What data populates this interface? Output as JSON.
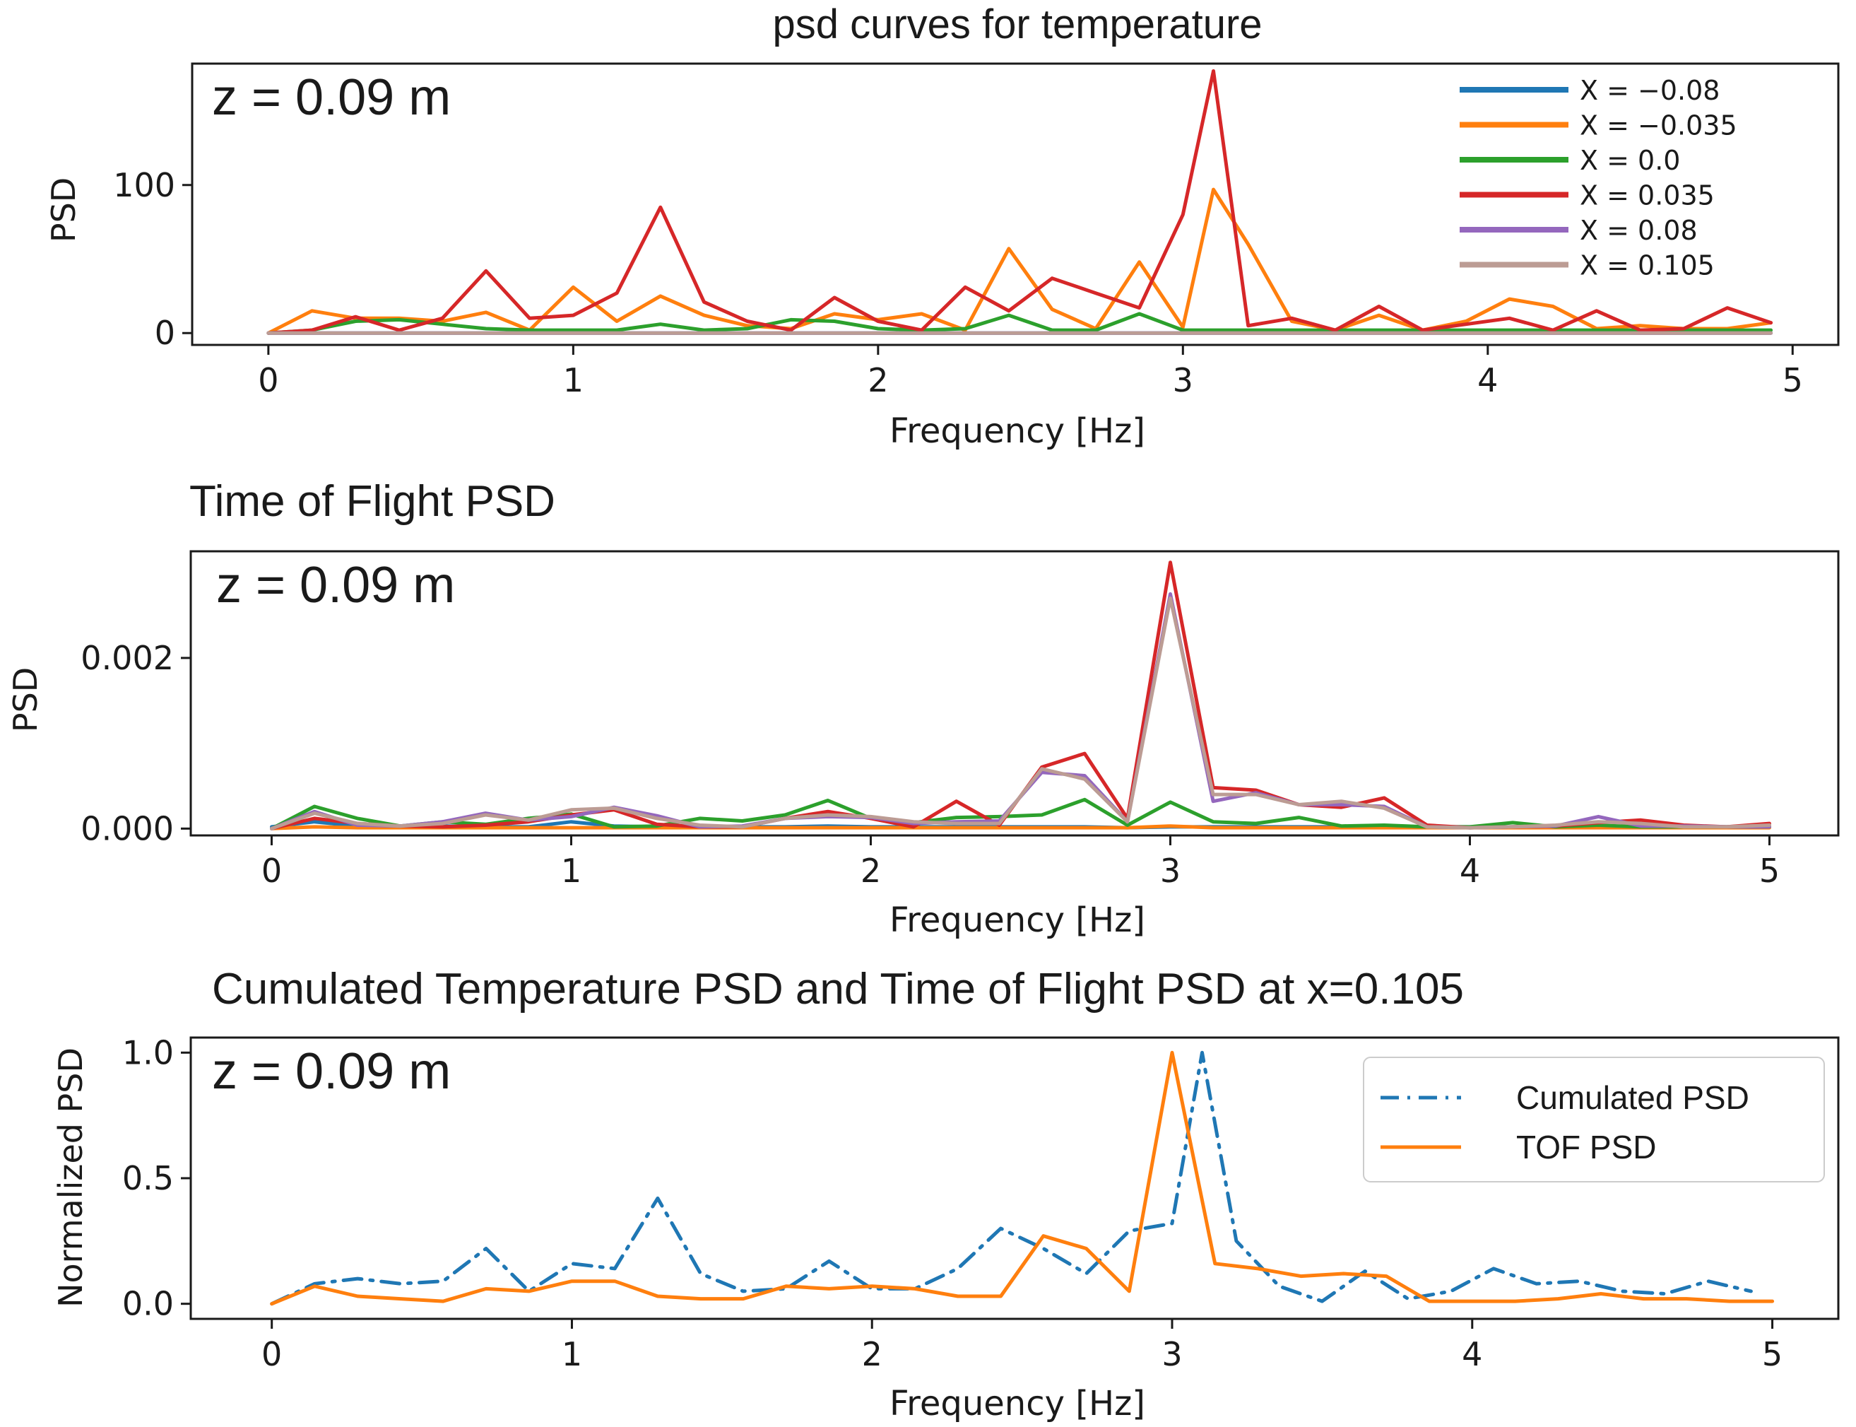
{
  "chart_data": [
    {
      "type": "line",
      "title": "psd curves for temperature",
      "annotation": "z = 0.09 m",
      "xlabel": "Frequency [Hz]",
      "ylabel": "PSD",
      "xlim": [
        -0.25,
        5.15
      ],
      "ylim": [
        -8,
        182
      ],
      "xticks": [
        0,
        1,
        2,
        3,
        4,
        5
      ],
      "yticks": [
        0,
        100
      ],
      "legend_position": "top-right",
      "x": [
        0,
        0.143,
        0.286,
        0.429,
        0.571,
        0.714,
        0.857,
        1.0,
        1.143,
        1.286,
        1.429,
        1.571,
        1.714,
        1.857,
        2.0,
        2.143,
        2.286,
        2.429,
        2.571,
        2.714,
        2.857,
        3.0,
        3.1,
        3.214,
        3.357,
        3.5,
        3.643,
        3.786,
        3.929,
        4.071,
        4.214,
        4.357,
        4.5,
        4.643,
        4.786,
        4.929
      ],
      "series": [
        {
          "name": "X = −0.08",
          "color": "#1f77b4",
          "values": [
            0,
            0,
            0,
            0,
            0,
            0,
            0,
            0,
            0,
            0,
            0,
            0,
            0,
            0,
            0,
            0,
            0,
            0,
            0,
            0,
            0,
            0,
            0,
            0,
            0,
            0,
            0,
            0,
            0,
            0,
            0,
            0,
            0,
            0,
            0,
            0
          ]
        },
        {
          "name": "X = −0.035",
          "color": "#ff7f0e",
          "values": [
            0,
            15,
            10,
            10,
            8,
            14,
            2,
            31,
            8,
            25,
            12,
            5,
            3,
            13,
            9,
            13,
            2,
            57,
            16,
            3,
            48,
            4,
            97,
            60,
            8,
            2,
            12,
            2,
            8,
            23,
            18,
            3,
            5,
            3,
            3,
            7
          ]
        },
        {
          "name": "X = 0.0",
          "color": "#2ca02c",
          "values": [
            0,
            2,
            8,
            9,
            6,
            3,
            2,
            2,
            2,
            6,
            2,
            3,
            9,
            8,
            3,
            2,
            3,
            12,
            2,
            2,
            13,
            2,
            2,
            2,
            2,
            2,
            2,
            2,
            2,
            2,
            2,
            2,
            2,
            2,
            2,
            2
          ]
        },
        {
          "name": "X = 0.035",
          "color": "#d62728",
          "values": [
            0,
            2,
            11,
            2,
            10,
            42,
            10,
            12,
            27,
            85,
            21,
            8,
            2,
            24,
            8,
            2,
            31,
            15,
            37,
            27,
            17,
            80,
            177,
            5,
            10,
            2,
            18,
            2,
            6,
            10,
            2,
            15,
            2,
            3,
            17,
            7
          ]
        },
        {
          "name": "X = 0.08",
          "color": "#9467bd",
          "values": [
            0,
            0,
            0,
            0,
            0,
            0,
            0,
            0,
            0,
            0,
            0,
            0,
            0,
            0,
            0,
            0,
            0,
            0,
            0,
            0,
            0,
            0,
            0,
            0,
            0,
            0,
            0,
            0,
            0,
            0,
            0,
            0,
            0,
            0,
            0,
            0
          ]
        },
        {
          "name": "X = 0.105",
          "color": "#bc9c94",
          "values": [
            0,
            0,
            0,
            0,
            0,
            0,
            0,
            0,
            0,
            0,
            0,
            0,
            0,
            0,
            0,
            0,
            0,
            0,
            0,
            0,
            0,
            0,
            0,
            0,
            0,
            0,
            0,
            0,
            0,
            0,
            0,
            0,
            0,
            0,
            0,
            0
          ]
        }
      ]
    },
    {
      "type": "line",
      "title": "Time of Flight PSD",
      "annotation": "z = 0.09 m",
      "xlabel": "Frequency [Hz]",
      "ylabel": "PSD",
      "xlim": [
        -0.27,
        5.23
      ],
      "ylim": [
        -8e-05,
        0.00325
      ],
      "xticks": [
        0,
        1,
        2,
        3,
        4,
        5
      ],
      "yticks": [
        0.0,
        0.002
      ],
      "ytick_labels": [
        "0.000",
        "0.002"
      ],
      "x": [
        0,
        0.143,
        0.286,
        0.429,
        0.571,
        0.714,
        0.857,
        1.0,
        1.143,
        1.286,
        1.429,
        1.571,
        1.714,
        1.857,
        2.0,
        2.143,
        2.286,
        2.429,
        2.571,
        2.714,
        2.857,
        3.0,
        3.143,
        3.286,
        3.429,
        3.571,
        3.714,
        3.857,
        4.0,
        4.143,
        4.286,
        4.429,
        4.571,
        4.714,
        4.857,
        5.0
      ],
      "series": [
        {
          "name": "X = −0.08",
          "color": "#1f77b4",
          "values": [
            2e-05,
            8e-05,
            3e-05,
            2e-05,
            3e-05,
            2e-05,
            2e-05,
            8e-05,
            3e-05,
            2e-05,
            2e-05,
            2e-05,
            2e-05,
            3e-05,
            2e-05,
            2e-05,
            2e-05,
            2e-05,
            2e-05,
            2e-05,
            1e-05,
            2e-05,
            2e-05,
            2e-05,
            2e-05,
            2e-05,
            2e-05,
            2e-05,
            2e-05,
            2e-05,
            2e-05,
            2e-05,
            2e-05,
            2e-05,
            2e-05,
            2e-05
          ]
        },
        {
          "name": "X = −0.035",
          "color": "#ff7f0e",
          "values": [
            0,
            2e-05,
            1e-05,
            1e-05,
            1e-05,
            1e-05,
            1e-05,
            1e-05,
            1e-05,
            1e-05,
            1e-05,
            1e-05,
            1e-05,
            1e-05,
            1e-05,
            1e-05,
            1e-05,
            1e-05,
            1e-05,
            1e-05,
            1e-05,
            3e-05,
            1e-05,
            1e-05,
            1e-05,
            1e-05,
            1e-05,
            1e-05,
            1e-05,
            1e-05,
            1e-05,
            1e-05,
            1e-05,
            1e-05,
            1e-05,
            1e-05
          ]
        },
        {
          "name": "X = 0.0",
          "color": "#2ca02c",
          "values": [
            0,
            0.00026,
            0.00012,
            3e-05,
            8e-05,
            5e-05,
            0.00012,
            0.00017,
            2e-05,
            3e-05,
            0.00012,
            9e-05,
            0.00016,
            0.00033,
            0.00012,
            7e-05,
            0.00013,
            0.00014,
            0.00016,
            0.00034,
            4e-05,
            0.00031,
            8e-05,
            6e-05,
            0.00013,
            3e-05,
            4e-05,
            2e-05,
            2e-05,
            7e-05,
            2e-05,
            4e-05,
            2e-05,
            2e-05,
            2e-05,
            2e-05
          ]
        },
        {
          "name": "X = 0.035",
          "color": "#d62728",
          "values": [
            0,
            0.00012,
            6e-05,
            3e-05,
            2e-05,
            4e-05,
            8e-05,
            0.00016,
            0.00022,
            5e-05,
            2e-05,
            2e-05,
            0.00012,
            0.0002,
            0.00012,
            2e-05,
            0.00032,
            4e-05,
            0.00072,
            0.00088,
            0.00012,
            0.00312,
            0.00048,
            0.00045,
            0.00028,
            0.00025,
            0.00036,
            4e-05,
            1e-05,
            2e-05,
            3e-05,
            7e-05,
            0.0001,
            4e-05,
            2e-05,
            6e-05
          ]
        },
        {
          "name": "X = 0.08",
          "color": "#9467bd",
          "values": [
            0,
            0.0002,
            4e-05,
            3e-05,
            8e-05,
            0.00018,
            0.0001,
            0.00014,
            0.00025,
            0.00015,
            2e-05,
            3e-05,
            0.00012,
            0.00014,
            0.00013,
            6e-05,
            8e-05,
            9e-05,
            0.00066,
            0.00062,
            8e-05,
            0.00275,
            0.00032,
            0.00042,
            0.00028,
            0.00028,
            0.00026,
            2e-05,
            1e-05,
            2e-05,
            3e-05,
            0.00014,
            3e-05,
            3e-05,
            2e-05,
            2e-05
          ]
        },
        {
          "name": "X = 0.105",
          "color": "#bc9c94",
          "values": [
            0,
            0.00018,
            6e-05,
            3e-05,
            6e-05,
            0.00016,
            0.0001,
            0.00022,
            0.00024,
            0.00012,
            4e-05,
            2e-05,
            0.00012,
            0.00016,
            0.00014,
            8e-05,
            6e-05,
            6e-05,
            0.0007,
            0.00058,
            8e-05,
            0.0027,
            0.0004,
            0.0004,
            0.00028,
            0.00032,
            0.00024,
            2e-05,
            1e-05,
            2e-05,
            4e-05,
            8e-05,
            6e-05,
            2e-05,
            2e-05,
            4e-05
          ]
        }
      ]
    },
    {
      "type": "line",
      "title": "Cumulated Temperature PSD and Time of Flight PSD at x=0.105",
      "annotation": "z = 0.09 m",
      "xlabel": "Frequency [Hz]",
      "ylabel": "Normalized PSD",
      "xlim": [
        -0.27,
        5.22
      ],
      "ylim": [
        -0.06,
        1.06
      ],
      "xticks": [
        0,
        1,
        2,
        3,
        4,
        5
      ],
      "yticks": [
        0.0,
        0.5,
        1.0
      ],
      "ytick_labels": [
        "0.0",
        "0.5",
        "1.0"
      ],
      "legend_position": "upper-right",
      "series": [
        {
          "name": "Cumulated PSD",
          "color": "#1f77b4",
          "style": "dashdot",
          "x": [
            0,
            0.143,
            0.286,
            0.429,
            0.571,
            0.714,
            0.857,
            1.0,
            1.143,
            1.286,
            1.429,
            1.571,
            1.714,
            1.857,
            2.0,
            2.143,
            2.286,
            2.429,
            2.571,
            2.714,
            2.857,
            3.0,
            3.1,
            3.214,
            3.357,
            3.5,
            3.643,
            3.786,
            3.929,
            4.071,
            4.214,
            4.357,
            4.5,
            4.643,
            4.786,
            4.929
          ],
          "values": [
            0,
            0.08,
            0.1,
            0.08,
            0.09,
            0.22,
            0.05,
            0.16,
            0.14,
            0.42,
            0.12,
            0.05,
            0.06,
            0.17,
            0.06,
            0.06,
            0.14,
            0.3,
            0.22,
            0.12,
            0.29,
            0.32,
            1.0,
            0.25,
            0.07,
            0.01,
            0.13,
            0.02,
            0.05,
            0.14,
            0.08,
            0.09,
            0.05,
            0.04,
            0.09,
            0.05
          ]
        },
        {
          "name": "TOF PSD",
          "color": "#ff7f0e",
          "style": "solid",
          "x": [
            0,
            0.143,
            0.286,
            0.429,
            0.571,
            0.714,
            0.857,
            1.0,
            1.143,
            1.286,
            1.429,
            1.571,
            1.714,
            1.857,
            2.0,
            2.143,
            2.286,
            2.429,
            2.571,
            2.714,
            2.857,
            3.0,
            3.143,
            3.286,
            3.429,
            3.571,
            3.714,
            3.857,
            4.0,
            4.143,
            4.286,
            4.429,
            4.571,
            4.714,
            4.857,
            5.0
          ],
          "values": [
            0,
            0.07,
            0.03,
            0.02,
            0.01,
            0.06,
            0.05,
            0.09,
            0.09,
            0.03,
            0.02,
            0.02,
            0.07,
            0.06,
            0.07,
            0.06,
            0.03,
            0.03,
            0.27,
            0.22,
            0.05,
            1.0,
            0.16,
            0.14,
            0.11,
            0.12,
            0.11,
            0.01,
            0.01,
            0.01,
            0.02,
            0.04,
            0.02,
            0.02,
            0.01,
            0.01
          ]
        }
      ]
    }
  ]
}
